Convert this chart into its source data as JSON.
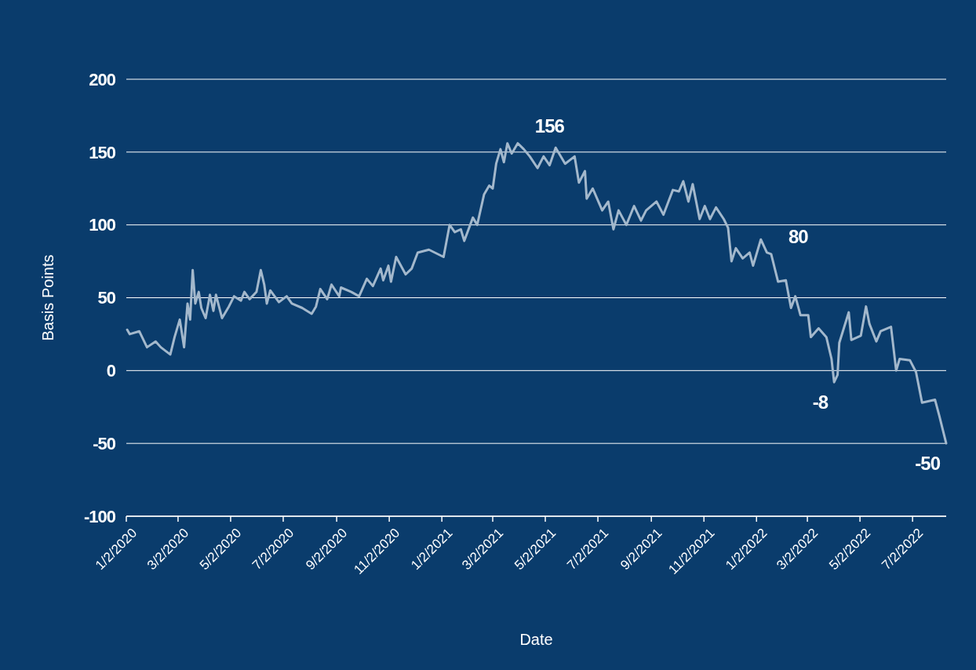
{
  "chart_data": {
    "type": "line",
    "xlabel": "Date",
    "ylabel": "Basis Points",
    "x": [
      "2020-01-03",
      "2020-01-06",
      "2020-01-17",
      "2020-01-26",
      "2020-02-05",
      "2020-02-11",
      "2020-02-22",
      "2020-02-27",
      "2020-03-04",
      "2020-03-09",
      "2020-03-13",
      "2020-03-16",
      "2020-03-19",
      "2020-03-22",
      "2020-03-26",
      "2020-03-29",
      "2020-04-03",
      "2020-04-08",
      "2020-04-12",
      "2020-04-15",
      "2020-04-22",
      "2020-04-30",
      "2020-05-06",
      "2020-05-14",
      "2020-05-18",
      "2020-05-24",
      "2020-06-01",
      "2020-06-06",
      "2020-06-10",
      "2020-06-13",
      "2020-06-17",
      "2020-06-27",
      "2020-07-06",
      "2020-07-12",
      "2020-07-24",
      "2020-08-04",
      "2020-08-09",
      "2020-08-14",
      "2020-08-22",
      "2020-08-27",
      "2020-09-05",
      "2020-09-07",
      "2020-09-19",
      "2020-09-28",
      "2020-10-07",
      "2020-10-14",
      "2020-10-23",
      "2020-10-26",
      "2020-11-01",
      "2020-11-04",
      "2020-11-10",
      "2020-11-21",
      "2020-11-28",
      "2020-12-05",
      "2020-12-18",
      "2021-01-04",
      "2021-01-11",
      "2021-01-17",
      "2021-01-24",
      "2021-01-28",
      "2021-02-07",
      "2021-02-12",
      "2021-02-20",
      "2021-02-26",
      "2021-03-02",
      "2021-03-06",
      "2021-03-11",
      "2021-03-15",
      "2021-03-19",
      "2021-03-24",
      "2021-03-31",
      "2021-04-07",
      "2021-04-14",
      "2021-04-23",
      "2021-04-30",
      "2021-05-07",
      "2021-05-14",
      "2021-05-25",
      "2021-06-05",
      "2021-06-10",
      "2021-06-17",
      "2021-06-19",
      "2021-06-26",
      "2021-07-07",
      "2021-07-14",
      "2021-07-20",
      "2021-07-26",
      "2021-08-04",
      "2021-08-13",
      "2021-08-21",
      "2021-08-27",
      "2021-09-08",
      "2021-09-16",
      "2021-09-27",
      "2021-10-04",
      "2021-10-09",
      "2021-10-15",
      "2021-10-20",
      "2021-10-28",
      "2021-11-03",
      "2021-11-09",
      "2021-11-16",
      "2021-11-25",
      "2021-11-30",
      "2021-12-04",
      "2021-12-09",
      "2021-12-17",
      "2021-12-25",
      "2021-12-29",
      "2022-01-07",
      "2022-01-14",
      "2022-01-19",
      "2022-01-27",
      "2022-02-05",
      "2022-02-11",
      "2022-02-16",
      "2022-02-22",
      "2022-03-03",
      "2022-03-06",
      "2022-03-15",
      "2022-03-24",
      "2022-03-30",
      "2022-04-02",
      "2022-04-06",
      "2022-04-08",
      "2022-04-19",
      "2022-04-22",
      "2022-05-03",
      "2022-05-09",
      "2022-05-13",
      "2022-05-21",
      "2022-05-26",
      "2022-06-07",
      "2022-06-13",
      "2022-06-17",
      "2022-06-29",
      "2022-07-06",
      "2022-07-13",
      "2022-07-28",
      "2022-08-02",
      "2022-08-10"
    ],
    "series": [
      {
        "color": "#a3b8cc",
        "values": [
          28,
          25,
          27,
          16,
          20,
          16,
          11,
          23,
          35,
          16,
          46,
          35,
          69,
          46,
          54,
          43,
          36,
          52,
          41,
          52,
          36,
          44,
          51,
          48,
          54,
          49,
          54,
          69,
          59,
          46,
          55,
          47,
          51,
          46,
          43,
          39,
          44,
          56,
          49,
          59,
          51,
          57,
          54,
          51,
          63,
          58,
          70,
          62,
          72,
          61,
          78,
          66,
          70,
          81,
          83,
          78,
          100,
          95,
          97,
          89,
          105,
          100,
          121,
          127,
          125,
          142,
          152,
          143,
          156,
          149,
          156,
          152,
          147,
          139,
          147,
          141,
          153,
          142,
          147,
          129,
          137,
          118,
          125,
          110,
          116,
          97,
          110,
          100,
          113,
          103,
          110,
          116,
          107,
          124,
          123,
          130,
          116,
          128,
          104,
          113,
          104,
          112,
          104,
          98,
          75,
          84,
          77,
          81,
          72,
          90,
          81,
          80,
          61,
          62,
          43,
          51,
          38,
          38,
          23,
          29,
          23,
          8,
          -8,
          -3,
          19,
          40,
          21,
          24,
          44,
          32,
          20,
          27,
          30,
          0,
          8,
          7,
          -1,
          -22,
          -20,
          -31,
          -50
        ]
      }
    ],
    "xlim": [
      "2020-01-02",
      "2022-08-10"
    ],
    "xticks": [
      {
        "value": "2020-01-02",
        "label": "1/2/2020"
      },
      {
        "value": "2020-03-02",
        "label": "3/2/2020"
      },
      {
        "value": "2020-05-02",
        "label": "5/2/2020"
      },
      {
        "value": "2020-07-02",
        "label": "7/2/2020"
      },
      {
        "value": "2020-09-02",
        "label": "9/2/2020"
      },
      {
        "value": "2020-11-02",
        "label": "11/2/2020"
      },
      {
        "value": "2021-01-02",
        "label": "1/2/2021"
      },
      {
        "value": "2021-03-02",
        "label": "3/2/2021"
      },
      {
        "value": "2021-05-02",
        "label": "5/2/2021"
      },
      {
        "value": "2021-07-02",
        "label": "7/2/2021"
      },
      {
        "value": "2021-09-02",
        "label": "9/2/2021"
      },
      {
        "value": "2021-11-02",
        "label": "11/2/2021"
      },
      {
        "value": "2022-01-02",
        "label": "1/2/2022"
      },
      {
        "value": "2022-03-02",
        "label": "3/2/2022"
      },
      {
        "value": "2022-05-02",
        "label": "5/2/2022"
      },
      {
        "value": "2022-07-02",
        "label": "7/2/2022"
      }
    ],
    "ylim": [
      -100,
      200
    ],
    "yticks": [
      -100,
      -50,
      0,
      50,
      100,
      150,
      200
    ],
    "grid": "y",
    "annotations": [
      {
        "text": "156",
        "x": "2021-03-31",
        "y": 156
      },
      {
        "text": "80",
        "x": "2022-01-19",
        "y": 80
      },
      {
        "text": "-8",
        "x": "2022-04-02",
        "y": -8
      },
      {
        "text": "-50",
        "x": "2022-08-10",
        "y": -50
      }
    ]
  }
}
